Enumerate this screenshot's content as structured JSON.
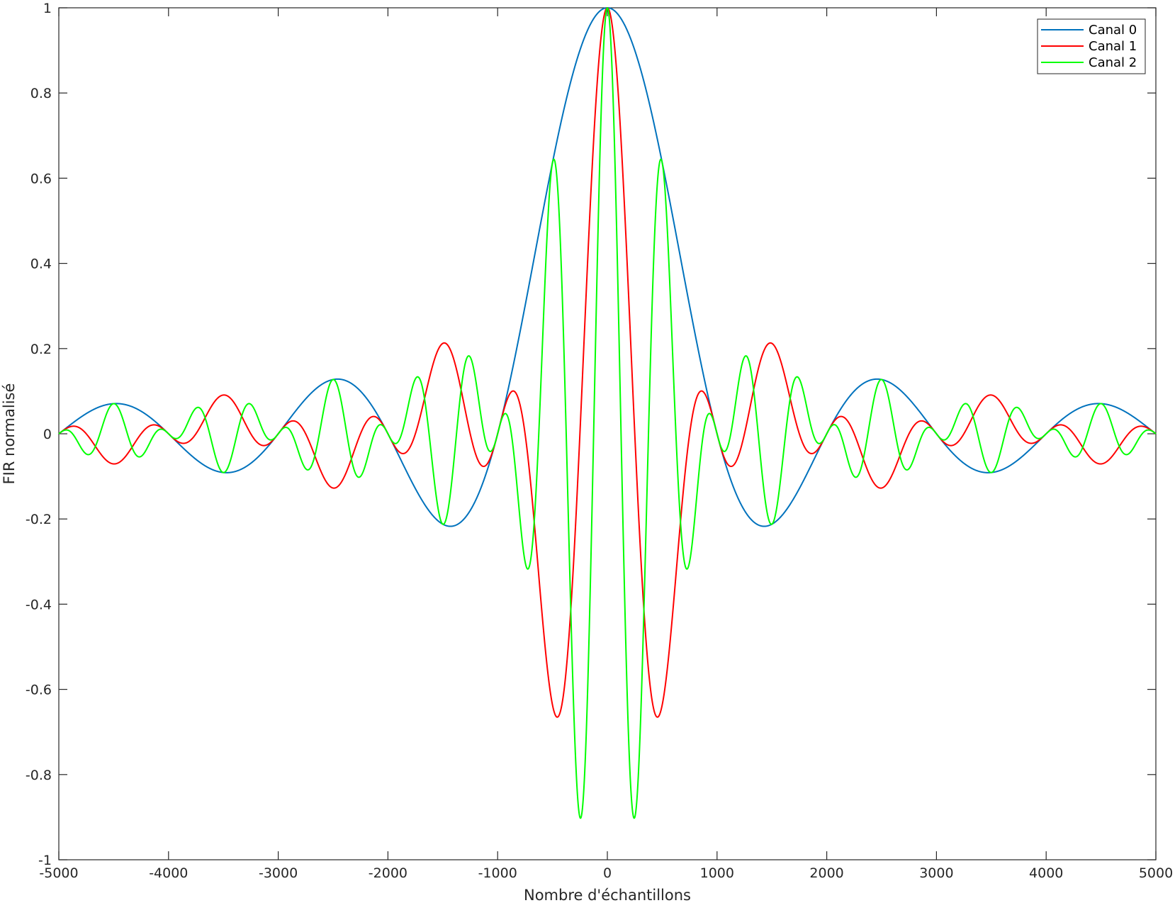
{
  "chart_data": {
    "type": "line",
    "title": "",
    "xlabel": "Nombre d'échantillons",
    "ylabel": "FIR normalisé",
    "xlim": [
      -5000,
      5000
    ],
    "ylim": [
      -1,
      1
    ],
    "xticks": [
      -5000,
      -4000,
      -3000,
      -2000,
      -1000,
      0,
      1000,
      2000,
      3000,
      4000,
      5000
    ],
    "xtick_labels": [
      "-5000",
      "-4000",
      "-3000",
      "-2000",
      "-1000",
      "0",
      "1000",
      "2000",
      "3000",
      "4000",
      "5000"
    ],
    "yticks": [
      -1,
      -0.8,
      -0.6,
      -0.4,
      -0.2,
      0,
      0.2,
      0.4,
      0.6,
      0.8,
      1
    ],
    "ytick_labels": [
      "-1",
      "-0.8",
      "-0.6",
      "-0.4",
      "-0.2",
      "0",
      "0.2",
      "0.4",
      "0.6",
      "0.8",
      "1"
    ],
    "grid": false,
    "legend_position": "top-right",
    "series": [
      {
        "name": "Canal 0",
        "color": "#0072BD",
        "envelope_zero_spacing": 1000,
        "carrier_period": null,
        "x_range": [
          -5000,
          5000
        ]
      },
      {
        "name": "Canal 1",
        "color": "#FF0000",
        "envelope_zero_spacing": 1000,
        "carrier_period": 1000,
        "x_range": [
          -5000,
          5000
        ]
      },
      {
        "name": "Canal 2",
        "color": "#00FF00",
        "envelope_zero_spacing": 1000,
        "carrier_period": 500,
        "x_range": [
          -5000,
          5000
        ]
      }
    ]
  }
}
